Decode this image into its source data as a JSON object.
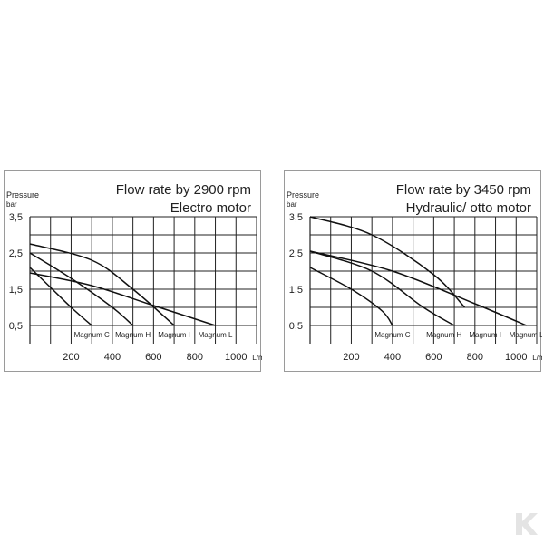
{
  "colors": {
    "line": "#111111",
    "grid": "#222222",
    "border": "#9a9a9a",
    "logo": "#e4e4e4"
  },
  "logo": {
    "icon": "k-brand-logo",
    "text": "K"
  },
  "chart_data": [
    {
      "type": "line",
      "title": "Flow rate by 2900 rpm",
      "subtitle": "Electro motor",
      "ylabel": "Pressure",
      "ylabel_unit": "bar",
      "xlabel": "L/min",
      "xlim": [
        0,
        1100
      ],
      "ylim": [
        0,
        3.5
      ],
      "xticks": [
        200,
        400,
        600,
        800,
        1000
      ],
      "yticks": [
        0.5,
        1.5,
        2.5,
        3.5
      ],
      "ytick_labels": [
        "0,5",
        "1,5",
        "2,5",
        "3,5"
      ],
      "grid": true,
      "series": [
        {
          "name": "Magnum C",
          "points": [
            [
              0,
              2.1
            ],
            [
              100,
              1.55
            ],
            [
              200,
              1.0
            ],
            [
              300,
              0.5
            ]
          ]
        },
        {
          "name": "Magnum H",
          "points": [
            [
              0,
              2.5
            ],
            [
              200,
              1.8
            ],
            [
              400,
              1.0
            ],
            [
              500,
              0.5
            ]
          ]
        },
        {
          "name": "Magnum I",
          "points": [
            [
              0,
              2.75
            ],
            [
              300,
              2.3
            ],
            [
              500,
              1.5
            ],
            [
              700,
              0.5
            ]
          ]
        },
        {
          "name": "Magnum L",
          "points": [
            [
              0,
              1.95
            ],
            [
              300,
              1.6
            ],
            [
              600,
              1.05
            ],
            [
              900,
              0.5
            ]
          ]
        }
      ]
    },
    {
      "type": "line",
      "title": "Flow rate by 3450 rpm",
      "subtitle": "Hydraulic/ otto motor",
      "ylabel": "Pressure",
      "ylabel_unit": "bar",
      "xlabel": "L/min",
      "xlim": [
        0,
        1100
      ],
      "ylim": [
        0,
        3.5
      ],
      "xticks": [
        200,
        400,
        600,
        800,
        1000
      ],
      "yticks": [
        0.5,
        1.5,
        2.5,
        3.5
      ],
      "ytick_labels": [
        "0,5",
        "1,5",
        "2,5",
        "3,5"
      ],
      "grid": true,
      "series": [
        {
          "name": "Magnum C",
          "points": [
            [
              0,
              2.1
            ],
            [
              200,
              1.5
            ],
            [
              350,
              0.9
            ],
            [
              400,
              0.5
            ]
          ]
        },
        {
          "name": "Magnum H",
          "points": [
            [
              0,
              2.55
            ],
            [
              300,
              2.0
            ],
            [
              550,
              1.0
            ],
            [
              700,
              0.5
            ]
          ]
        },
        {
          "name": "Magnum I",
          "points": [
            [
              0,
              3.5
            ],
            [
              300,
              3.0
            ],
            [
              600,
              1.9
            ],
            [
              750,
              1.0
            ]
          ]
        },
        {
          "name": "Magnum L",
          "points": [
            [
              0,
              2.55
            ],
            [
              400,
              2.0
            ],
            [
              800,
              1.1
            ],
            [
              1050,
              0.5
            ]
          ]
        }
      ],
      "series_label_order": [
        "Magnum C",
        "Magnum H",
        "Magnum I",
        "Magnum L"
      ]
    }
  ]
}
